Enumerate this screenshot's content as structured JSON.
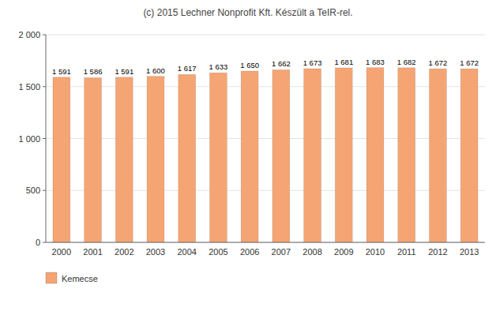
{
  "chart_data": {
    "type": "bar",
    "title": "(c) 2015 Lechner Nonprofit Kft. Készült a TeIR-rel.",
    "categories": [
      "2000",
      "2001",
      "2002",
      "2003",
      "2004",
      "2005",
      "2006",
      "2007",
      "2008",
      "2009",
      "2010",
      "2011",
      "2012",
      "2013"
    ],
    "series": [
      {
        "name": "Kemecse",
        "color": "#F5A573",
        "values": [
          1591,
          1586,
          1591,
          1600,
          1617,
          1633,
          1650,
          1662,
          1673,
          1681,
          1683,
          1682,
          1672,
          1672
        ],
        "value_labels": [
          "1 591",
          "1 586",
          "1 591",
          "1 600",
          "1 617",
          "1 633",
          "1 650",
          "1 662",
          "1 673",
          "1 681",
          "1 683",
          "1 682",
          "1 672",
          "1 672"
        ]
      }
    ],
    "ylim": [
      0,
      2000
    ],
    "yticks": [
      0,
      500,
      {
        "value": 1000,
        "label": "1 000"
      },
      {
        "value": 1500,
        "label": "1 500"
      },
      {
        "value": 2000,
        "label": "2 000"
      }
    ],
    "grid": true,
    "data_labels": true,
    "legend": "bottom"
  }
}
